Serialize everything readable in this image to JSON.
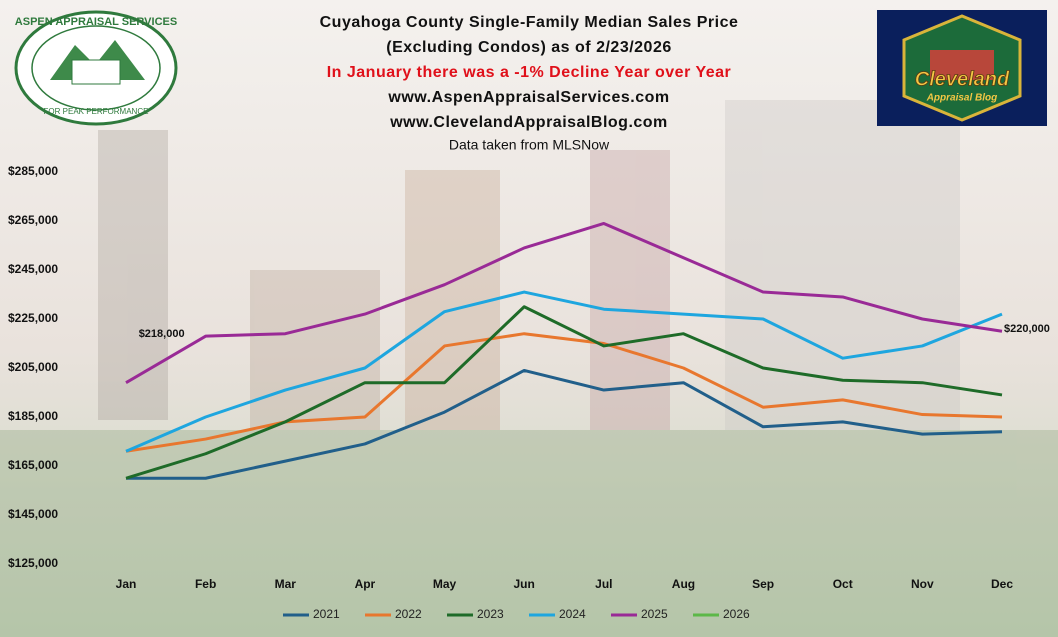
{
  "chart_data": {
    "type": "line",
    "title": "Cuyahoga County Single-Family Median Sales Price",
    "subtitle": "(Excluding Condos) as of 2/23/2026",
    "annotations": [
      "In January there was a -1% Decline Year over Year",
      "www.AspenAppraisalServices.com",
      "www.ClevelandAppraisalBlog.com",
      "Data taken from MLSNow"
    ],
    "logos": [
      "ASPEN APPRAISAL SERVICES",
      "FOR PEAK PERFORMANCE",
      "Cleveland",
      "Appraisal Blog"
    ],
    "categories": [
      "Jan",
      "Feb",
      "Mar",
      "Apr",
      "May",
      "Jun",
      "Jul",
      "Aug",
      "Sep",
      "Oct",
      "Nov",
      "Dec"
    ],
    "ylim": [
      125000,
      285000
    ],
    "yticks": [
      {
        "value": 125000,
        "label": "$125,000"
      },
      {
        "value": 145000,
        "label": "$145,000"
      },
      {
        "value": 165000,
        "label": "$165,000"
      },
      {
        "value": 185000,
        "label": "$185,000"
      },
      {
        "value": 205000,
        "label": "$205,000"
      },
      {
        "value": 225000,
        "label": "$225,000"
      },
      {
        "value": 245000,
        "label": "$245,000"
      },
      {
        "value": 265000,
        "label": "$265,000"
      },
      {
        "value": 285000,
        "label": "$285,000"
      }
    ],
    "grid": false,
    "legend": "bottom",
    "series": [
      {
        "name": "2021",
        "color": "#215f8a",
        "values": [
          160000,
          160000,
          167000,
          174000,
          187000,
          204000,
          196000,
          199000,
          181000,
          183000,
          178000,
          179000
        ]
      },
      {
        "name": "2022",
        "color": "#e8772e",
        "values": [
          171000,
          176000,
          183000,
          185000,
          214000,
          219000,
          215000,
          205000,
          189000,
          192000,
          186000,
          185000
        ]
      },
      {
        "name": "2023",
        "color": "#1e6b28",
        "values": [
          160000,
          170000,
          183000,
          199000,
          199000,
          230000,
          214000,
          219000,
          205000,
          200000,
          199000,
          194000
        ]
      },
      {
        "name": "2024",
        "color": "#1ea6df",
        "values": [
          171000,
          185000,
          196000,
          205000,
          228000,
          236000,
          229000,
          227000,
          225000,
          209000,
          214000,
          227000
        ]
      },
      {
        "name": "2025",
        "color": "#992a96",
        "values": [
          199000,
          218000,
          219000,
          227000,
          239000,
          254000,
          264000,
          250000,
          236000,
          234000,
          225000,
          220000
        ],
        "value_labels": [
          null,
          "$218,000",
          null,
          null,
          null,
          null,
          null,
          null,
          null,
          null,
          null,
          "$220,000"
        ]
      },
      {
        "name": "2026",
        "color": "#5cb848",
        "values": [
          null,
          null,
          null,
          null,
          null,
          null,
          null,
          null,
          null,
          null,
          null,
          null
        ]
      }
    ]
  }
}
